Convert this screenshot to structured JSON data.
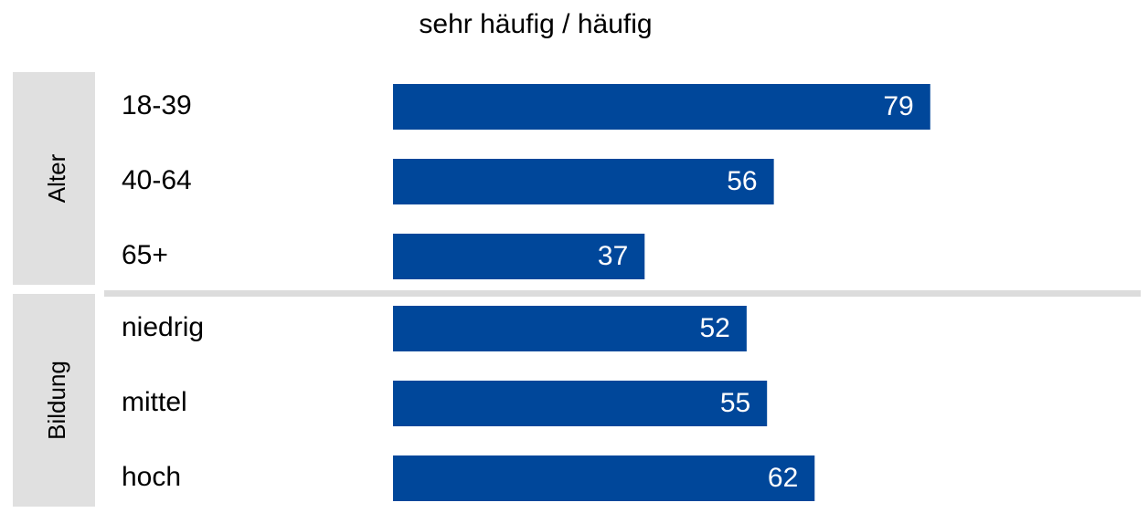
{
  "chart_data": {
    "type": "bar",
    "title": "sehr häufig / häufig",
    "color": "#00479a",
    "xlim": [
      0,
      100
    ],
    "groups": [
      {
        "name": "Alter",
        "categories": [
          "18-39",
          "40-64",
          "65+"
        ],
        "values": [
          79,
          56,
          37
        ]
      },
      {
        "name": "Bildung",
        "categories": [
          "niedrig",
          "mittel",
          "hoch"
        ],
        "values": [
          52,
          55,
          62
        ]
      }
    ]
  }
}
